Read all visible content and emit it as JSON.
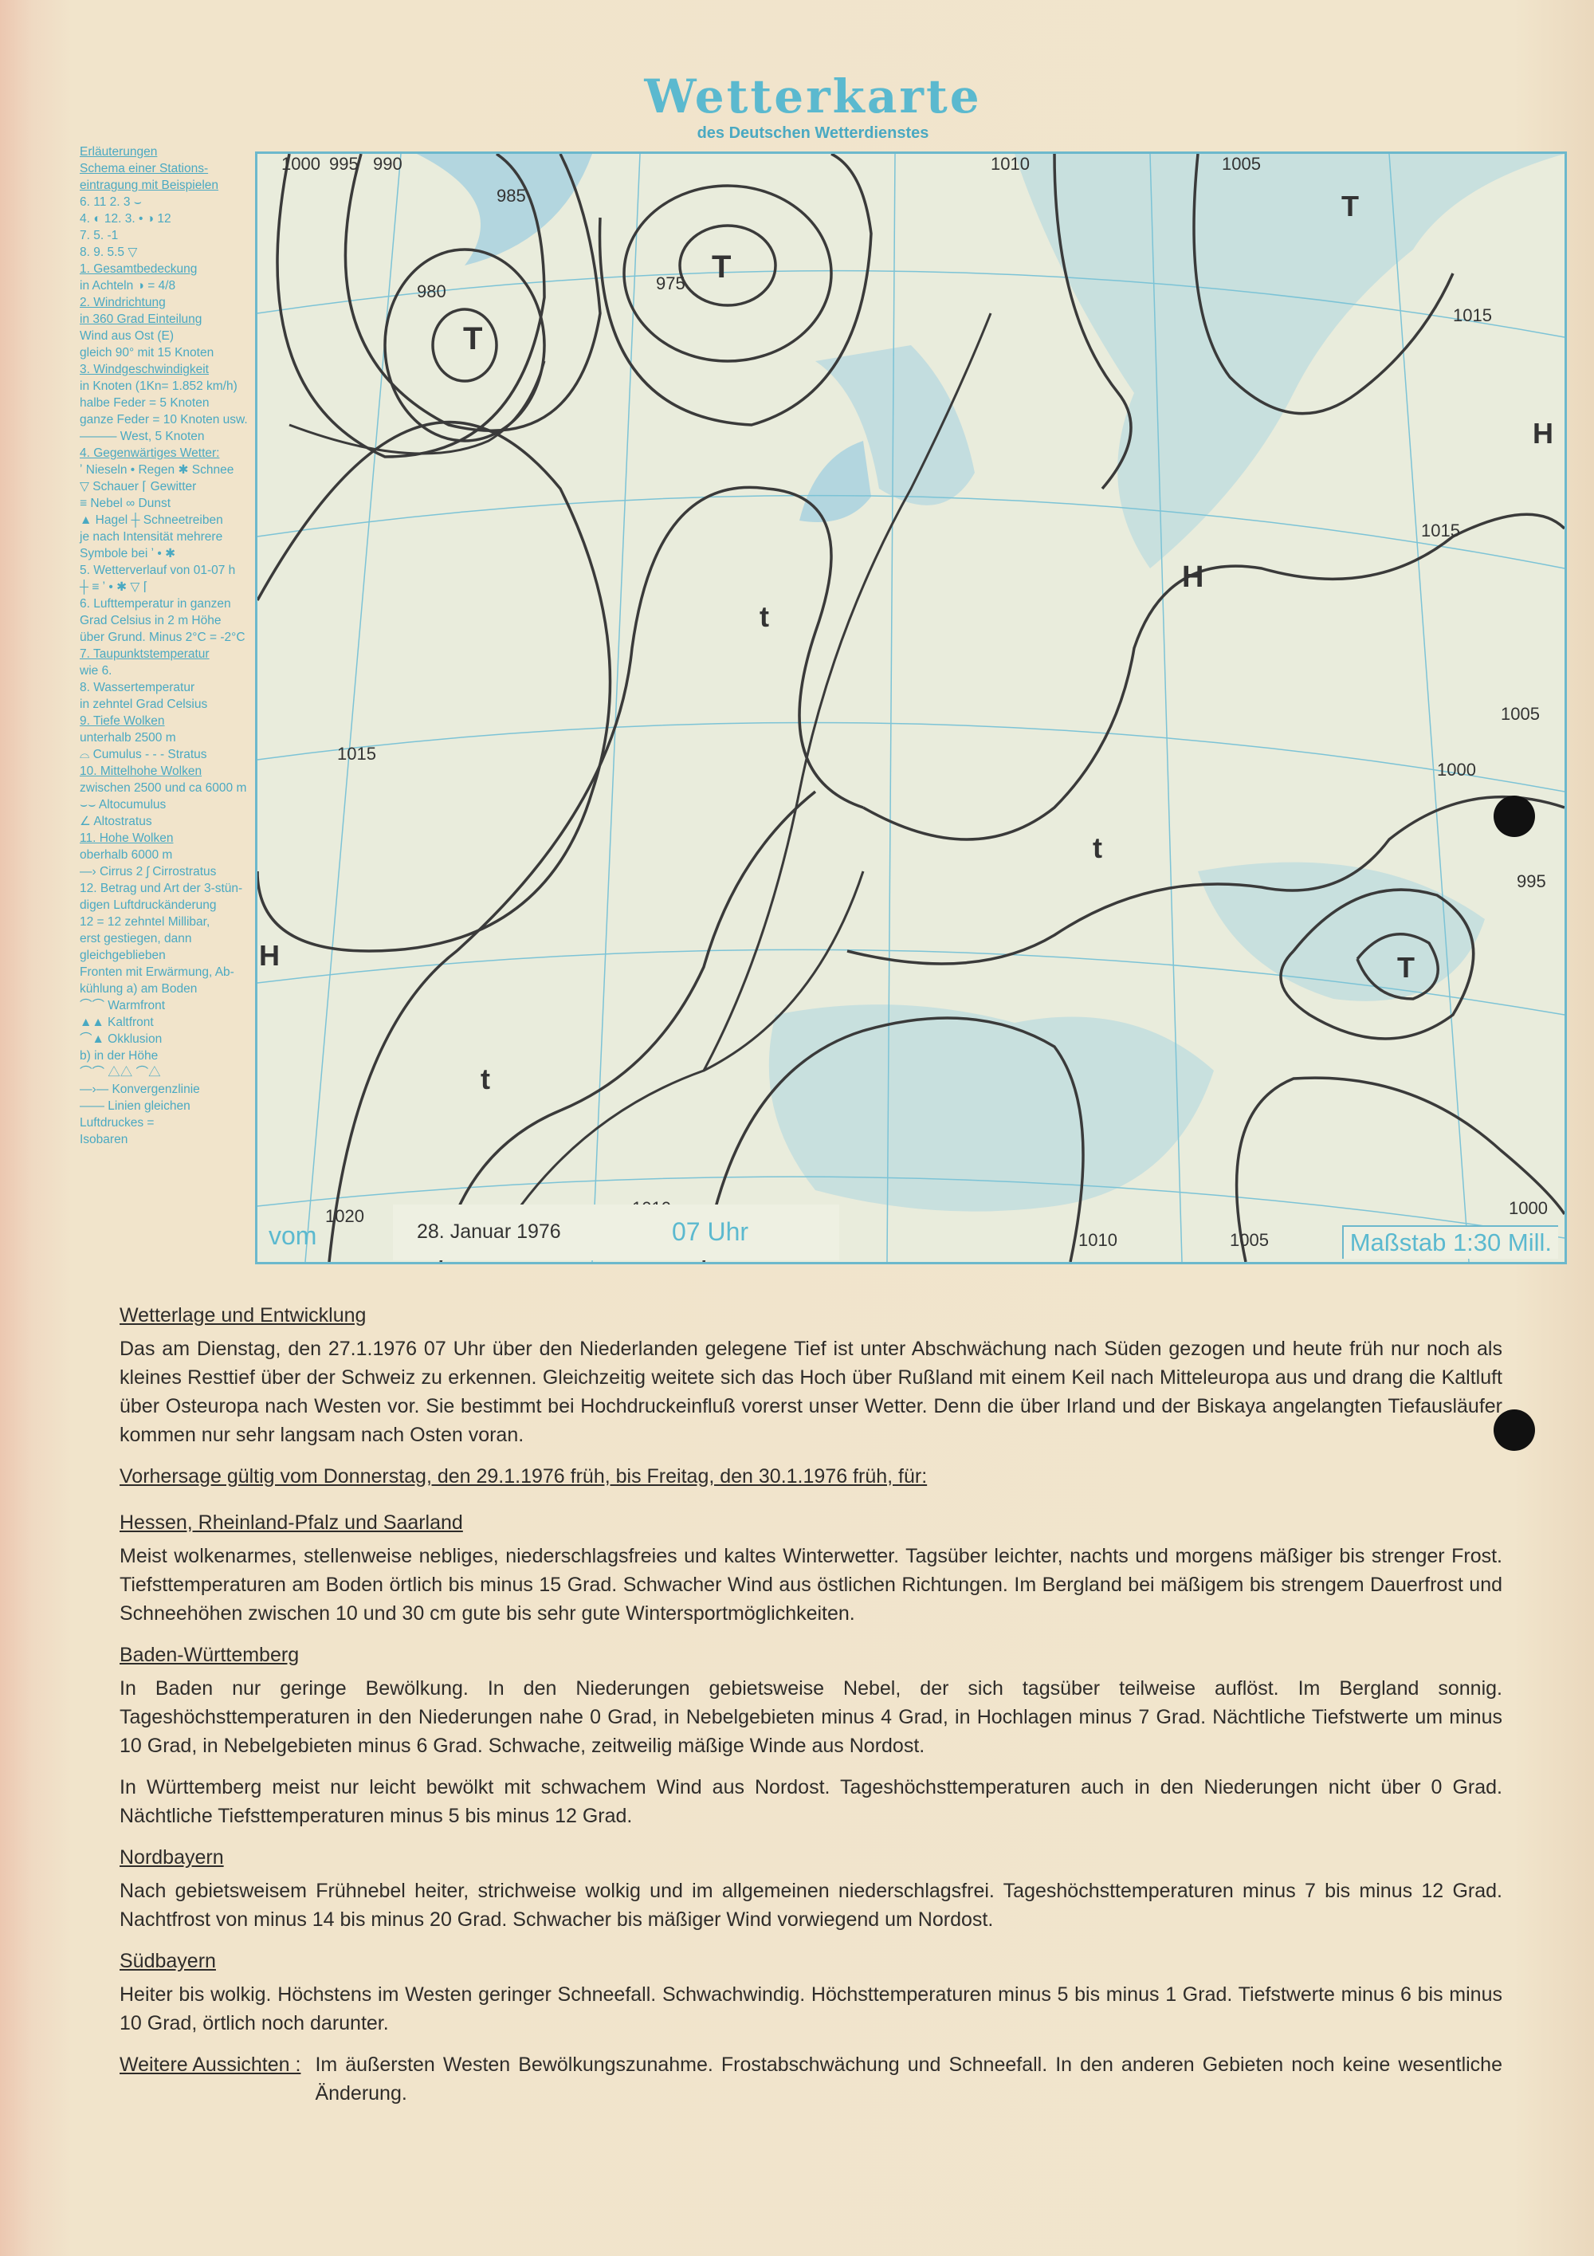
{
  "header": {
    "title": "Wetterkarte",
    "subtitle": "des Deutschen Wetterdienstes"
  },
  "legend": {
    "lines": [
      {
        "t": "Erläuterungen",
        "h": true
      },
      {
        "t": "Schema einer Stations-",
        "h": true
      },
      {
        "t": "eintragung mit Beispielen",
        "h": true
      },
      {
        "t": "6. 11  2.     3   ⌣"
      },
      {
        "t": "4. ◐ 12. 3.   •  ◑ 12"
      },
      {
        "t": "7.  5.       -1"
      },
      {
        "t": "8.  9.      5.5   ▽"
      },
      {
        "t": "1. Gesamtbedeckung",
        "h": true
      },
      {
        "t": "in Achteln  ◑  = 4/8"
      },
      {
        "t": "2. Windrichtung",
        "h": true
      },
      {
        "t": "in 360 Grad Einteilung",
        "h": true
      },
      {
        "t": "       Wind aus Ost (E)"
      },
      {
        "t": "gleich 90° mit 15 Knoten"
      },
      {
        "t": "3. Windgeschwindigkeit",
        "h": true
      },
      {
        "t": "in Knoten (1Kn= 1.852 km/h)"
      },
      {
        "t": "halbe Feder = 5 Knoten"
      },
      {
        "t": "ganze Feder = 10 Knoten usw."
      },
      {
        "t": "———  West, 5 Knoten"
      },
      {
        "t": "4. Gegenwärtiges Wetter:",
        "h": true
      },
      {
        "t": "ʼ Nieseln • Regen ✱ Schnee"
      },
      {
        "t": "▽ Schauer  ⌈ Gewitter"
      },
      {
        "t": "≡ Nebel    ∞ Dunst"
      },
      {
        "t": "▲ Hagel   ┼ Schneetreiben"
      },
      {
        "t": "je nach Intensität mehrere"
      },
      {
        "t": "Symbole bei  ʼ  •  ✱"
      },
      {
        "t": "5. Wetterverlauf von 01-07 h"
      },
      {
        "t": "┼ ≡ ʼ • ✱ ▽ ⌈"
      },
      {
        "t": "6. Lufttemperatur in ganzen"
      },
      {
        "t": "Grad Celsius in 2 m Höhe"
      },
      {
        "t": "über Grund. Minus 2°C = -2°C"
      },
      {
        "t": "7. Taupunktstemperatur",
        "h": true
      },
      {
        "t": "         wie 6."
      },
      {
        "t": "8. Wassertemperatur"
      },
      {
        "t": "in zehntel Grad Celsius"
      },
      {
        "t": "9. Tiefe Wolken",
        "h": true
      },
      {
        "t": "unterhalb 2500 m"
      },
      {
        "t": "⌓ Cumulus  - - - Stratus"
      },
      {
        "t": "10. Mittelhohe Wolken",
        "h": true
      },
      {
        "t": "zwischen 2500 und ca 6000 m"
      },
      {
        "t": "      ⌣⌣  Altocumulus"
      },
      {
        "t": "      ∠   Altostratus"
      },
      {
        "t": "11. Hohe Wolken",
        "h": true
      },
      {
        "t": "oberhalb 6000 m"
      },
      {
        "t": "—› Cirrus  2 ʃ Cirrostratus"
      },
      {
        "t": "12. Betrag und Art der 3-stün-"
      },
      {
        "t": "digen Luftdruckänderung"
      },
      {
        "t": "12 = 12 zehntel Millibar,"
      },
      {
        "t": "     erst gestiegen, dann"
      },
      {
        "t": "     gleichgeblieben"
      },
      {
        "t": "Fronten mit Erwärmung, Ab-"
      },
      {
        "t": "kühlung  a) am Boden"
      },
      {
        "t": "⌒⌒  Warmfront"
      },
      {
        "t": "▲▲  Kaltfront"
      },
      {
        "t": "⌒▲  Okklusion"
      },
      {
        "t": "       b) in der Höhe"
      },
      {
        "t": "⌒⌒   △△   ⌒△"
      },
      {
        "t": "—›—  Konvergenzlinie"
      },
      {
        "t": "——   Linien gleichen"
      },
      {
        "t": "       Luftdruckes ="
      },
      {
        "t": "       Isobaren"
      }
    ]
  },
  "map": {
    "footer": {
      "prefix": "vom",
      "date": "28. Januar 1976",
      "time": "07 Uhr",
      "scale": "Maßstab 1:30 Mill."
    },
    "colors": {
      "isobar": "#3a3a3a",
      "sea": "#a9d3df",
      "grid": "#7cc3d6",
      "print": "#4aa9c2"
    },
    "pressure_centers": [
      {
        "label": "T"
      },
      {
        "label": "T"
      },
      {
        "label": "T"
      },
      {
        "label": "T"
      },
      {
        "label": "H"
      },
      {
        "label": "H"
      },
      {
        "label": "H"
      },
      {
        "label": "t"
      },
      {
        "label": "t"
      },
      {
        "label": "t"
      }
    ],
    "isobar_labels": [
      "1000",
      "995",
      "990",
      "985",
      "980",
      "975",
      "1010",
      "1005",
      "1015",
      "1020",
      "1010",
      "1015",
      "1005",
      "1000",
      "995",
      "1000",
      "1005",
      "1010",
      "1015"
    ]
  },
  "text": {
    "h1": "Wetterlage und Entwicklung",
    "p1": "Das am Dienstag, den 27.1.1976 07 Uhr über den Niederlanden gelegene Tief ist unter Abschwächung nach Süden gezogen und heute früh nur noch als kleines Resttief über der Schweiz zu erkennen. Gleichzeitig weitete sich das Hoch über Rußland mit einem Keil nach Mitteleuropa aus und drang die Kaltluft über Osteuropa nach Westen vor. Sie bestimmt bei Hochdruckeinfluß vorerst unser Wetter. Denn die über Irland und der Biskaya angelangten Tiefausläufer kommen nur sehr langsam nach Osten voran.",
    "h2": "Vorhersage gültig vom Donnerstag, den 29.1.1976 früh, bis Freitag, den 30.1.1976 früh, für:",
    "h3": "Hessen, Rheinland-Pfalz und Saarland",
    "p3": "Meist wolkenarmes, stellenweise nebliges, niederschlagsfreies und kaltes Winterwetter. Tagsüber leichter, nachts und morgens mäßiger bis strenger Frost. Tiefsttemperaturen am Boden örtlich bis minus 15 Grad. Schwacher Wind aus östlichen Richtungen. Im Bergland bei mäßigem bis strengem Dauerfrost und Schneehöhen zwischen 10 und 30 cm gute bis sehr gute Wintersportmöglichkeiten.",
    "h4": "Baden-Württemberg",
    "p4a": "In Baden nur geringe Bewölkung. In den Niederungen gebietsweise Nebel, der sich tagsüber teilweise auflöst. Im Bergland sonnig. Tageshöchsttemperaturen in den Niederungen nahe 0 Grad, in Nebelgebieten minus 4 Grad, in Hochlagen minus 7 Grad. Nächtliche Tiefstwerte um minus 10 Grad, in Nebelgebieten minus 6 Grad. Schwache, zeitweilig mäßige Winde aus Nordost.",
    "p4b": "In Württemberg meist nur leicht bewölkt mit schwachem Wind aus Nordost. Tageshöchsttemperaturen auch in den Niederungen nicht über 0 Grad. Nächtliche Tiefsttemperaturen minus 5 bis minus 12 Grad.",
    "h5": "Nordbayern",
    "p5": "Nach gebietsweisem Frühnebel heiter, strichweise wolkig und im allgemeinen niederschlagsfrei. Tageshöchsttemperaturen minus 7 bis minus 12 Grad. Nachtfrost von minus 14 bis minus 20 Grad. Schwacher bis mäßiger Wind vorwiegend um Nordost.",
    "h6": "Südbayern",
    "p6": "Heiter bis wolkig. Höchstens im Westen geringer Schneefall. Schwachwindig. Höchsttemperaturen minus 5 bis minus 1 Grad. Tiefstwerte minus 6 bis minus 10 Grad, örtlich noch darunter.",
    "h7": "Weitere Aussichten :",
    "p7": "Im äußersten Westen Bewölkungszunahme. Frostabschwächung und Schneefall. In den anderen Gebieten noch keine wesentliche Änderung."
  }
}
